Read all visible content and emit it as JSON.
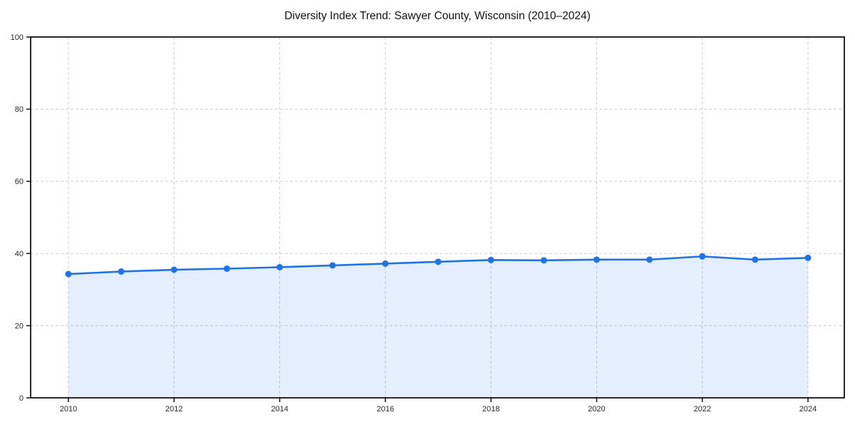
{
  "chart_data": {
    "type": "area",
    "title": "Diversity Index Trend: Sawyer County, Wisconsin (2010–2024)",
    "xlabel": "",
    "ylabel": "",
    "x": [
      2010,
      2011,
      2012,
      2013,
      2014,
      2015,
      2016,
      2017,
      2018,
      2019,
      2020,
      2021,
      2022,
      2023,
      2024
    ],
    "series": [
      {
        "name": "Diversity Index",
        "values": [
          34.3,
          35.0,
          35.5,
          35.8,
          36.2,
          36.7,
          37.2,
          37.7,
          38.2,
          38.1,
          38.3,
          38.3,
          39.2,
          38.3,
          38.8
        ]
      }
    ],
    "ylim": [
      0,
      100
    ],
    "xlim": [
      2009.3,
      2024.7
    ],
    "y_ticks": [
      0,
      20,
      40,
      60,
      80,
      100
    ],
    "x_tick_labels": [
      "2010",
      "2012",
      "2014",
      "2016",
      "2018",
      "2020",
      "2022",
      "2024"
    ],
    "grid": true,
    "grid_style": "dashed",
    "legend": "none",
    "marker": "circle",
    "colors": {
      "line": "#1f72e8",
      "marker": "#1f72e8",
      "area_fill": "#1f72e8",
      "area_opacity": "0.12",
      "grid": "#cfcfcf",
      "spine": "#111111",
      "tick": "#111111",
      "tick_label": "#262626",
      "title": "#111111",
      "background": "#ffffff"
    }
  }
}
